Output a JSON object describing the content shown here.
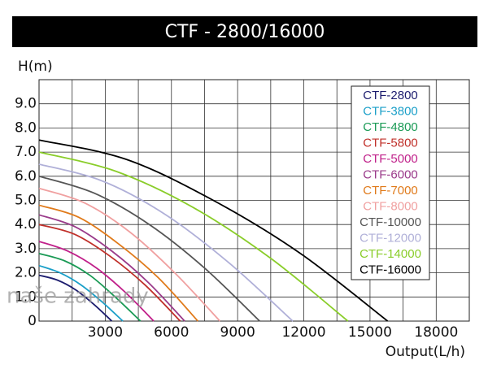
{
  "chart_data": {
    "type": "line",
    "title": "CTF - 2800/16000",
    "y_label": "H(m)",
    "x_label": "Output(L/h)",
    "watermark": "naše zahrady",
    "xlim": [
      0,
      19500
    ],
    "ylim": [
      0,
      10
    ],
    "xticks": [
      3000,
      6000,
      9000,
      12000,
      15000,
      18000
    ],
    "yticks": [
      0,
      {
        "value": 1,
        "label": "1.0"
      },
      {
        "value": 2,
        "label": "2.0"
      },
      {
        "value": 3,
        "label": "3.0"
      },
      {
        "value": 4,
        "label": "4.0"
      },
      {
        "value": 5,
        "label": "5.0"
      },
      {
        "value": 6,
        "label": "6.0"
      },
      {
        "value": 7,
        "label": "7.0"
      },
      {
        "value": 8,
        "label": "8.0"
      },
      {
        "value": 9,
        "label": "9.0"
      }
    ],
    "grid": true,
    "legend": "top-right",
    "series": [
      {
        "name": "CTF-2800",
        "color": "#1c1c6e",
        "x": [
          0,
          825,
          1650,
          2475,
          3300
        ],
        "values": [
          1.9,
          1.7,
          1.3,
          0.7,
          0
        ]
      },
      {
        "name": "CTF-3800",
        "color": "#1a9fc8",
        "x": [
          0,
          950,
          1900,
          2850,
          3800
        ],
        "values": [
          2.3,
          2.0,
          1.5,
          0.8,
          0
        ]
      },
      {
        "name": "CTF-4800",
        "color": "#1a9a55",
        "x": [
          0,
          1150,
          2300,
          3450,
          4600
        ],
        "values": [
          2.8,
          2.5,
          1.9,
          1.0,
          0
        ]
      },
      {
        "name": "CTF-5800",
        "color": "#c0302a",
        "x": [
          0,
          1600,
          3200,
          4800,
          6400
        ],
        "values": [
          4.0,
          3.6,
          2.7,
          1.5,
          0
        ]
      },
      {
        "name": "CTF-5000",
        "color": "#c0208a",
        "x": [
          0,
          1300,
          2600,
          3900,
          5200
        ],
        "values": [
          3.3,
          2.9,
          2.2,
          1.2,
          0
        ]
      },
      {
        "name": "CTF-6000",
        "color": "#9a3a8a",
        "x": [
          0,
          1650,
          3300,
          4950,
          6600
        ],
        "values": [
          4.4,
          3.9,
          2.9,
          1.6,
          0
        ]
      },
      {
        "name": "CTF-7000",
        "color": "#e07a1a",
        "x": [
          0,
          1800,
          3600,
          5400,
          7200
        ],
        "values": [
          4.8,
          4.3,
          3.2,
          1.8,
          0
        ]
      },
      {
        "name": "CTF-8000",
        "color": "#f0a0a0",
        "x": [
          0,
          2050,
          4100,
          6150,
          8200
        ],
        "values": [
          5.5,
          4.9,
          3.7,
          2.0,
          0
        ]
      },
      {
        "name": "CTF-10000",
        "color": "#555555",
        "x": [
          0,
          2500,
          5000,
          7500,
          10000
        ],
        "values": [
          6.0,
          5.3,
          4.0,
          2.2,
          0
        ]
      },
      {
        "name": "CTF-12000",
        "color": "#b0b0d8",
        "x": [
          0,
          2875,
          5750,
          8625,
          11500
        ],
        "values": [
          6.5,
          5.8,
          4.4,
          2.4,
          0
        ]
      },
      {
        "name": "CTF-14000",
        "color": "#8acd2a",
        "x": [
          0,
          3500,
          7000,
          10500,
          14000
        ],
        "values": [
          7.0,
          6.2,
          4.7,
          2.6,
          0
        ]
      },
      {
        "name": "CTF-16000",
        "color": "#000000",
        "x": [
          0,
          3950,
          7900,
          11850,
          15800
        ],
        "values": [
          7.5,
          6.7,
          5.0,
          2.8,
          0
        ]
      }
    ]
  }
}
